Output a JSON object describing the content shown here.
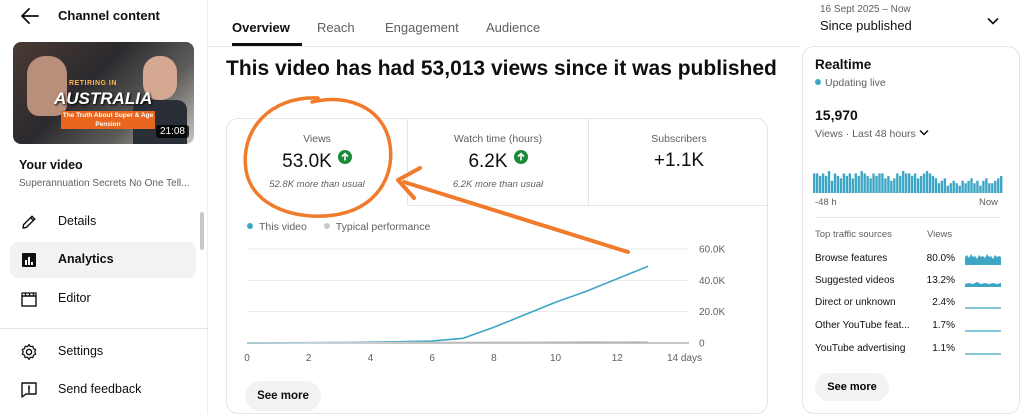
{
  "sidebar": {
    "title": "Channel content",
    "thumbnail": {
      "small_text": "RETIRING IN",
      "big_text": "AUSTRALIA",
      "band_text": "The Truth About Super & Age Pension",
      "duration": "21:08"
    },
    "your_video_label": "Your video",
    "video_title": "Superannuation Secrets No One Tell...",
    "nav": [
      {
        "label": "Details",
        "icon": "pencil-icon"
      },
      {
        "label": "Analytics",
        "icon": "analytics-icon",
        "active": true
      },
      {
        "label": "Editor",
        "icon": "clapperboard-icon"
      }
    ],
    "footer": [
      {
        "label": "Settings",
        "icon": "gear-icon"
      },
      {
        "label": "Send feedback",
        "icon": "feedback-icon"
      }
    ]
  },
  "tabs": [
    {
      "label": "Overview",
      "active": true
    },
    {
      "label": "Reach"
    },
    {
      "label": "Engagement"
    },
    {
      "label": "Audience"
    }
  ],
  "date_range": {
    "range": "16 Sept 2025 – Now",
    "label": "Since published"
  },
  "headline": "This video has had 53,013 views since it was published",
  "metrics": [
    {
      "label": "Views",
      "value": "53.0K",
      "trend": "up",
      "note": "52.8K more than usual"
    },
    {
      "label": "Watch time (hours)",
      "value": "6.2K",
      "trend": "up",
      "note": "6.2K more than usual"
    },
    {
      "label": "Subscribers",
      "value": "+1.1K"
    }
  ],
  "legend": {
    "series_a": "This video",
    "series_b": "Typical performance"
  },
  "colors": {
    "line": "#3ea6c5",
    "typical": "#c9c9c9",
    "up_badge": "#1b8a3a",
    "annotation": "#f07b2c"
  },
  "chart_data": {
    "type": "line",
    "x": [
      0,
      1,
      2,
      3,
      4,
      5,
      6,
      7,
      8,
      9,
      10,
      11,
      12,
      13
    ],
    "series": [
      {
        "name": "This video",
        "values": [
          0,
          100,
          200,
          300,
          500,
          800,
          1200,
          3000,
          10000,
          18000,
          26000,
          33000,
          41000,
          49000
        ]
      },
      {
        "name": "Typical performance",
        "values": [
          150,
          200,
          250,
          300,
          350,
          400,
          450,
          500,
          550,
          600,
          650,
          700,
          750,
          800
        ]
      }
    ],
    "x_ticks": [
      "0",
      "2",
      "4",
      "6",
      "8",
      "10",
      "12",
      "14 days"
    ],
    "x_tick_values": [
      0,
      2,
      4,
      6,
      8,
      10,
      12,
      14
    ],
    "y_ticks": [
      "0",
      "20.0K",
      "40.0K",
      "60.0K"
    ],
    "y_tick_values": [
      0,
      20000,
      40000,
      60000
    ],
    "xlim": [
      0,
      14
    ],
    "ylim": [
      0,
      60000
    ],
    "grid": true
  },
  "see_more": "See more",
  "realtime": {
    "title": "Realtime",
    "status": "Updating live",
    "count": "15,970",
    "subtitle": "Views · Last 48 hours",
    "axis_left": "-48 h",
    "axis_right": "Now",
    "bars": [
      8,
      8,
      7,
      8,
      7,
      9,
      5,
      8,
      7,
      6,
      8,
      7,
      8,
      6,
      8,
      7,
      9,
      8,
      7,
      6,
      8,
      7,
      8,
      8,
      6,
      7,
      5,
      6,
      8,
      7,
      9,
      8,
      8,
      7,
      8,
      6,
      7,
      8,
      9,
      8,
      7,
      6,
      4,
      5,
      6,
      3,
      4,
      5,
      4,
      3,
      5,
      4,
      5,
      6,
      4,
      5,
      3,
      5,
      6,
      4,
      4,
      5,
      6,
      7
    ],
    "traffic_header": "Top traffic sources",
    "traffic_col": "Views",
    "traffic": [
      {
        "name": "Browse features",
        "pct": "80.0%"
      },
      {
        "name": "Suggested videos",
        "pct": "13.2%"
      },
      {
        "name": "Direct or unknown",
        "pct": "2.4%"
      },
      {
        "name": "Other YouTube feat...",
        "pct": "1.7%"
      },
      {
        "name": "YouTube advertising",
        "pct": "1.1%"
      }
    ],
    "see_more": "See more"
  }
}
